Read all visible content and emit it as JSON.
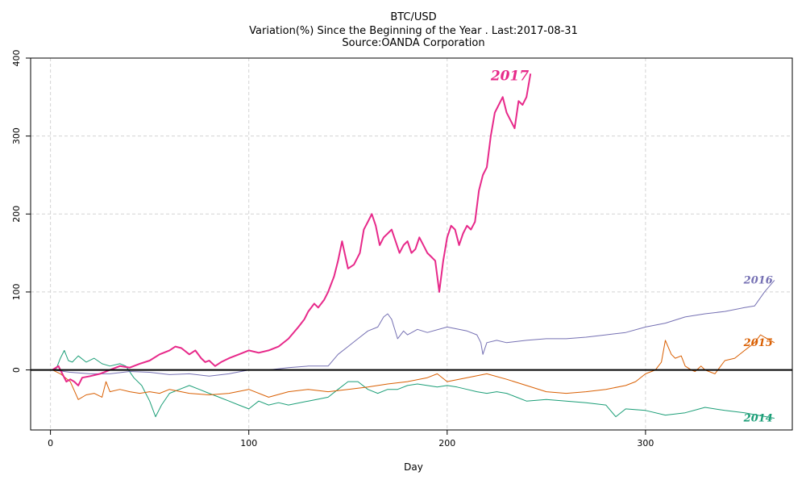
{
  "chart_data": {
    "type": "line",
    "title": "BTC/USD",
    "subtitle": "Variation(%) Since the Beginning of the Year . Last:2017-08-31",
    "source": "Source:OANDA Corporation",
    "xlabel": "Day",
    "ylabel": "",
    "xlim": [
      -10,
      374
    ],
    "ylim": [
      -77,
      400
    ],
    "x_ticks": [
      0,
      100,
      200,
      300
    ],
    "y_ticks": [
      0,
      100,
      200,
      300,
      400
    ],
    "grid": true,
    "zero_line": true,
    "series": [
      {
        "name": "2014",
        "color": "#1b9e77",
        "width": 1,
        "label_size": 13,
        "x": [
          1,
          3,
          5,
          7,
          9,
          11,
          14,
          18,
          22,
          26,
          30,
          35,
          38,
          42,
          46,
          50,
          53,
          56,
          60,
          65,
          70,
          75,
          80,
          85,
          90,
          95,
          100,
          105,
          110,
          115,
          120,
          130,
          140,
          145,
          150,
          155,
          160,
          165,
          170,
          175,
          180,
          185,
          190,
          195,
          200,
          205,
          210,
          215,
          220,
          225,
          230,
          235,
          240,
          250,
          260,
          270,
          280,
          285,
          290,
          300,
          310,
          320,
          330,
          340,
          350,
          365
        ],
        "y": [
          0,
          2,
          15,
          25,
          12,
          10,
          18,
          10,
          15,
          8,
          5,
          8,
          5,
          -10,
          -20,
          -40,
          -60,
          -45,
          -30,
          -25,
          -20,
          -25,
          -30,
          -35,
          -40,
          -45,
          -50,
          -40,
          -45,
          -42,
          -45,
          -40,
          -35,
          -25,
          -15,
          -15,
          -25,
          -30,
          -25,
          -25,
          -20,
          -18,
          -20,
          -22,
          -20,
          -22,
          -25,
          -28,
          -30,
          -28,
          -30,
          -35,
          -40,
          -38,
          -40,
          -42,
          -45,
          -60,
          -50,
          -52,
          -58,
          -55,
          -48,
          -52,
          -55,
          -62
        ]
      },
      {
        "name": "2015",
        "color": "#d95f02",
        "width": 1,
        "label_size": 13,
        "x": [
          1,
          5,
          10,
          14,
          18,
          22,
          26,
          28,
          30,
          35,
          40,
          45,
          50,
          55,
          60,
          70,
          80,
          90,
          100,
          110,
          120,
          130,
          140,
          150,
          160,
          170,
          180,
          190,
          195,
          200,
          210,
          220,
          230,
          240,
          250,
          260,
          270,
          280,
          290,
          295,
          300,
          305,
          308,
          310,
          313,
          315,
          318,
          320,
          323,
          325,
          328,
          330,
          335,
          340,
          345,
          350,
          355,
          358,
          360,
          365
        ],
        "y": [
          0,
          -5,
          -15,
          -38,
          -32,
          -30,
          -35,
          -15,
          -28,
          -25,
          -28,
          -30,
          -28,
          -30,
          -25,
          -30,
          -32,
          -30,
          -25,
          -35,
          -28,
          -25,
          -28,
          -25,
          -22,
          -18,
          -15,
          -10,
          -5,
          -15,
          -10,
          -5,
          -12,
          -20,
          -28,
          -30,
          -28,
          -25,
          -20,
          -15,
          -5,
          0,
          10,
          38,
          20,
          15,
          18,
          5,
          0,
          -2,
          5,
          0,
          -5,
          12,
          15,
          25,
          35,
          45,
          42,
          35
        ]
      },
      {
        "name": "2016",
        "color": "#7570b3",
        "width": 1,
        "label_size": 13,
        "x": [
          1,
          10,
          20,
          30,
          40,
          50,
          60,
          70,
          80,
          90,
          100,
          110,
          120,
          130,
          140,
          145,
          150,
          155,
          160,
          165,
          168,
          170,
          172,
          175,
          178,
          180,
          185,
          190,
          200,
          210,
          215,
          217,
          218,
          220,
          225,
          230,
          240,
          250,
          260,
          270,
          280,
          290,
          300,
          310,
          320,
          330,
          340,
          350,
          355,
          360,
          365
        ],
        "y": [
          0,
          -3,
          -5,
          -5,
          -2,
          -3,
          -6,
          -5,
          -8,
          -5,
          0,
          0,
          3,
          5,
          5,
          20,
          30,
          40,
          50,
          55,
          68,
          72,
          65,
          40,
          50,
          45,
          52,
          48,
          55,
          50,
          45,
          35,
          20,
          35,
          38,
          35,
          38,
          40,
          40,
          42,
          45,
          48,
          55,
          60,
          68,
          72,
          75,
          80,
          82,
          100,
          115
        ]
      },
      {
        "name": "2017",
        "color": "#e7298a",
        "width": 2,
        "label_size": 17,
        "x": [
          1,
          4,
          6,
          8,
          10,
          12,
          14,
          16,
          20,
          25,
          30,
          35,
          40,
          45,
          50,
          55,
          60,
          63,
          66,
          70,
          73,
          76,
          78,
          80,
          83,
          86,
          90,
          95,
          100,
          105,
          110,
          115,
          120,
          125,
          128,
          130,
          133,
          135,
          138,
          140,
          143,
          145,
          147,
          150,
          153,
          156,
          158,
          160,
          162,
          164,
          166,
          168,
          170,
          172,
          174,
          176,
          178,
          180,
          182,
          184,
          186,
          188,
          190,
          192,
          194,
          196,
          198,
          200,
          202,
          204,
          206,
          208,
          210,
          212,
          214,
          216,
          218,
          220,
          222,
          224,
          226,
          228,
          230,
          232,
          234,
          236,
          238,
          240,
          242
        ],
        "y": [
          0,
          5,
          -5,
          -15,
          -12,
          -15,
          -20,
          -10,
          -8,
          -5,
          0,
          5,
          3,
          8,
          12,
          20,
          25,
          30,
          28,
          20,
          25,
          15,
          10,
          12,
          5,
          10,
          15,
          20,
          25,
          22,
          25,
          30,
          40,
          55,
          65,
          75,
          85,
          80,
          90,
          100,
          120,
          140,
          165,
          130,
          135,
          150,
          180,
          190,
          200,
          185,
          160,
          170,
          175,
          180,
          165,
          150,
          160,
          165,
          150,
          155,
          170,
          160,
          150,
          145,
          140,
          100,
          140,
          170,
          185,
          180,
          160,
          175,
          185,
          180,
          190,
          230,
          250,
          260,
          300,
          330,
          340,
          350,
          330,
          320,
          310,
          345,
          340,
          350,
          380
        ]
      }
    ]
  }
}
